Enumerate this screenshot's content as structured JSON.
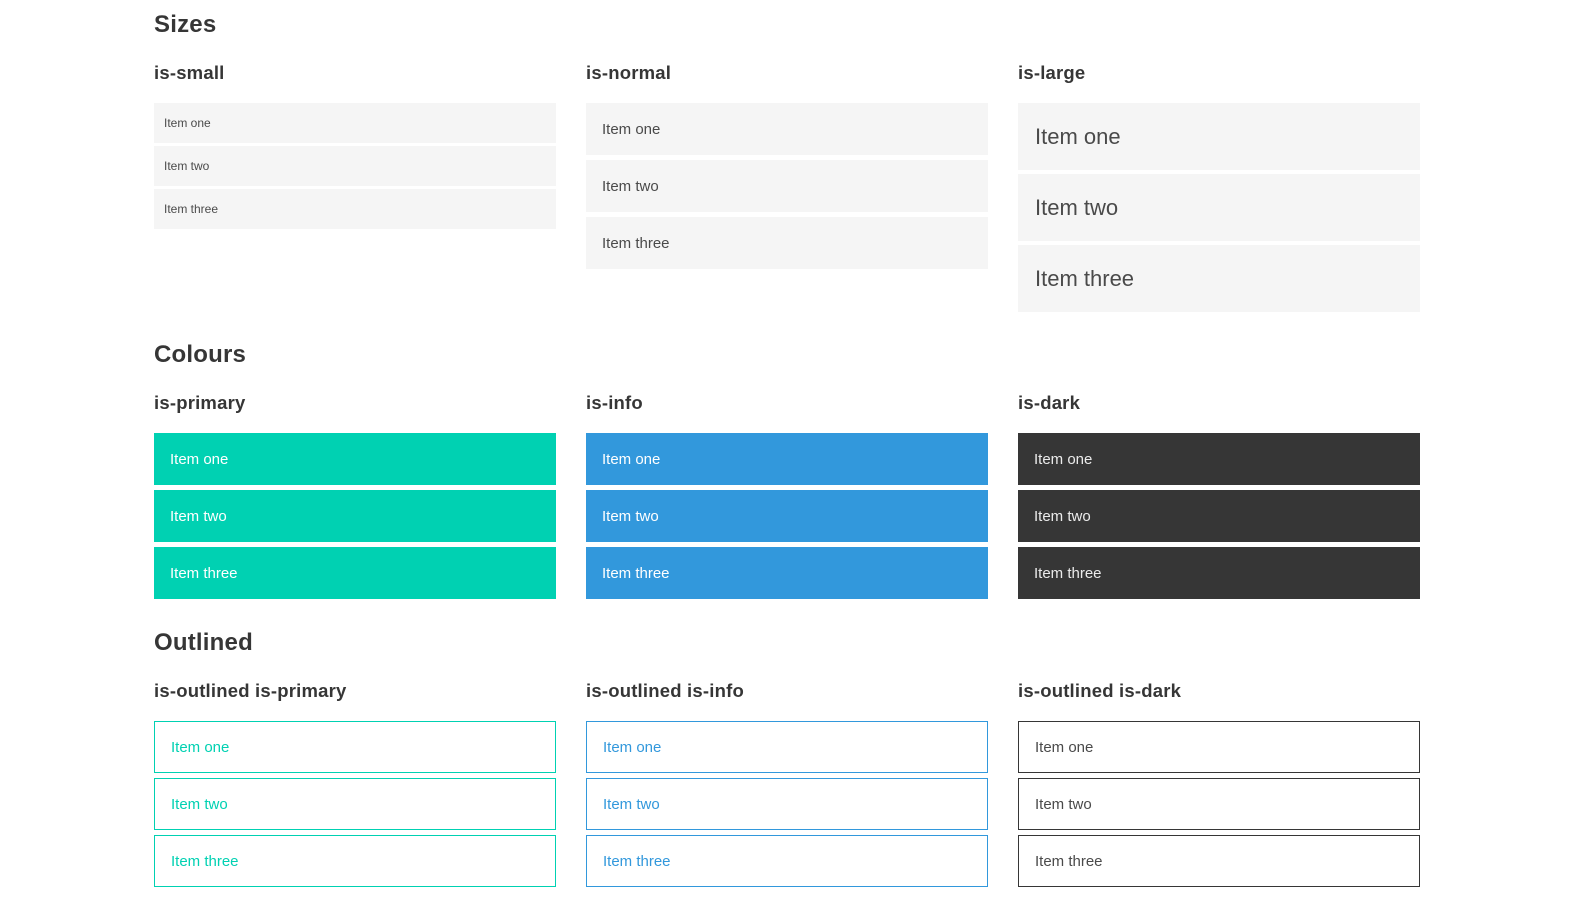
{
  "sections": [
    {
      "title": "Sizes",
      "groups": [
        {
          "label": "is-small",
          "items": [
            "Item one",
            "Item two",
            "Item three"
          ]
        },
        {
          "label": "is-normal",
          "items": [
            "Item one",
            "Item two",
            "Item three"
          ]
        },
        {
          "label": "is-large",
          "items": [
            "Item one",
            "Item two",
            "Item three"
          ]
        }
      ]
    },
    {
      "title": "Colours",
      "groups": [
        {
          "label": "is-primary",
          "items": [
            "Item one",
            "Item two",
            "Item three"
          ]
        },
        {
          "label": "is-info",
          "items": [
            "Item one",
            "Item two",
            "Item three"
          ]
        },
        {
          "label": "is-dark",
          "items": [
            "Item one",
            "Item two",
            "Item three"
          ]
        }
      ]
    },
    {
      "title": "Outlined",
      "groups": [
        {
          "label": "is-outlined is-primary",
          "items": [
            "Item one",
            "Item two",
            "Item three"
          ]
        },
        {
          "label": "is-outlined is-info",
          "items": [
            "Item one",
            "Item two",
            "Item three"
          ]
        },
        {
          "label": "is-outlined is-dark",
          "items": [
            "Item one",
            "Item two",
            "Item three"
          ]
        }
      ]
    }
  ],
  "colors": {
    "primary": "#00d1b2",
    "info": "#3298dc",
    "dark": "#363636",
    "item-bg": "#f5f5f5",
    "item-text": "#4a4a4a",
    "heading": "#363636",
    "on-color-text": "#ffffff",
    "on-dark-text": "#ebebeb"
  }
}
